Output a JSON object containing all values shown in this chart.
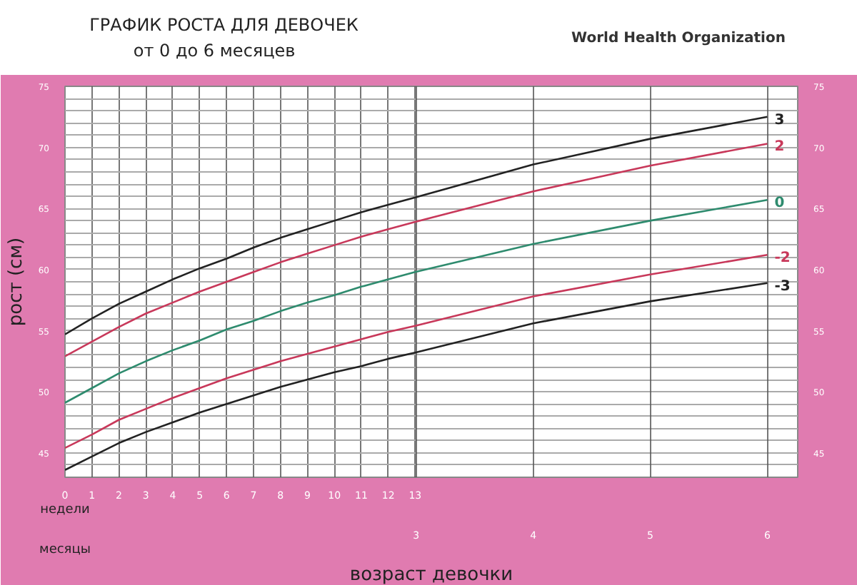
{
  "chart_data": {
    "type": "line",
    "title": "ГРАФИК РОСТА ДЛЯ ДЕВОЧЕК",
    "subtitle": "от 0 до 6 месяцев",
    "xlabel": "возраст девочки",
    "ylabel": "рост (см)",
    "annotations": [
      "World Health Organization",
      "недели",
      "месяцы"
    ],
    "x": [
      0,
      1,
      2,
      3,
      4,
      5,
      6,
      7,
      8,
      9,
      10,
      11,
      12,
      13,
      17.38,
      21.72,
      26.07
    ],
    "series": [
      {
        "name": "3",
        "color": "#222222",
        "values": [
          54.7,
          56.0,
          57.2,
          58.2,
          59.2,
          60.1,
          60.9,
          61.8,
          62.6,
          63.3,
          64.0,
          64.7,
          65.3,
          65.9,
          68.6,
          70.7,
          72.5
        ]
      },
      {
        "name": "2",
        "color": "#c8385a",
        "values": [
          52.9,
          54.1,
          55.3,
          56.4,
          57.3,
          58.2,
          59.0,
          59.8,
          60.6,
          61.3,
          62.0,
          62.7,
          63.3,
          63.9,
          66.4,
          68.5,
          70.3
        ]
      },
      {
        "name": "0",
        "color": "#2e8b6e",
        "values": [
          49.1,
          50.3,
          51.5,
          52.5,
          53.4,
          54.2,
          55.1,
          55.8,
          56.6,
          57.3,
          57.9,
          58.6,
          59.2,
          59.8,
          62.1,
          64.0,
          65.7
        ]
      },
      {
        "name": "-2",
        "color": "#c8385a",
        "values": [
          45.4,
          46.5,
          47.7,
          48.6,
          49.5,
          50.3,
          51.1,
          51.8,
          52.5,
          53.1,
          53.7,
          54.3,
          54.9,
          55.4,
          57.8,
          59.6,
          61.2
        ]
      },
      {
        "name": "-3",
        "color": "#222222",
        "values": [
          43.6,
          44.7,
          45.8,
          46.7,
          47.5,
          48.3,
          49.0,
          49.7,
          50.4,
          51.0,
          51.6,
          52.1,
          52.7,
          53.2,
          55.6,
          57.4,
          58.9
        ]
      }
    ],
    "xlim": [
      0,
      27.2
    ],
    "xticks": [
      0,
      1,
      2,
      3,
      4,
      5,
      6,
      7,
      8,
      9,
      10,
      11,
      12,
      13
    ],
    "x2lim": [
      0,
      6.26
    ],
    "x2ticks": [
      3,
      4,
      5,
      6
    ],
    "ylim": [
      43,
      75
    ],
    "yticks": [
      {
        "value": 44,
        "label": null
      },
      45,
      {
        "value": 46,
        "label": null
      },
      {
        "value": 47,
        "label": null
      },
      {
        "value": 48,
        "label": null
      },
      {
        "value": 49,
        "label": null
      },
      50,
      {
        "value": 51,
        "label": null
      },
      {
        "value": 52,
        "label": null
      },
      {
        "value": 53,
        "label": null
      },
      {
        "value": 54,
        "label": null
      },
      55,
      {
        "value": 56,
        "label": null
      },
      {
        "value": 57,
        "label": null
      },
      {
        "value": 58,
        "label": null
      },
      {
        "value": 59,
        "label": null
      },
      60,
      {
        "value": 61,
        "label": null
      },
      {
        "value": 62,
        "label": null
      },
      {
        "value": 63,
        "label": null
      },
      {
        "value": 64,
        "label": null
      },
      65,
      {
        "value": 66,
        "label": null
      },
      {
        "value": 67,
        "label": null
      },
      {
        "value": 68,
        "label": null
      },
      {
        "value": 69,
        "label": null
      },
      70,
      {
        "value": 71,
        "label": null
      },
      {
        "value": 72,
        "label": null
      },
      {
        "value": 73,
        "label": null
      },
      {
        "value": 74,
        "label": null
      },
      75
    ],
    "y2lim": [
      43,
      75
    ],
    "y2ticks": [
      45,
      50,
      55,
      60,
      65,
      70,
      75
    ],
    "grid": true,
    "marker": "none",
    "line_style": "solid"
  }
}
